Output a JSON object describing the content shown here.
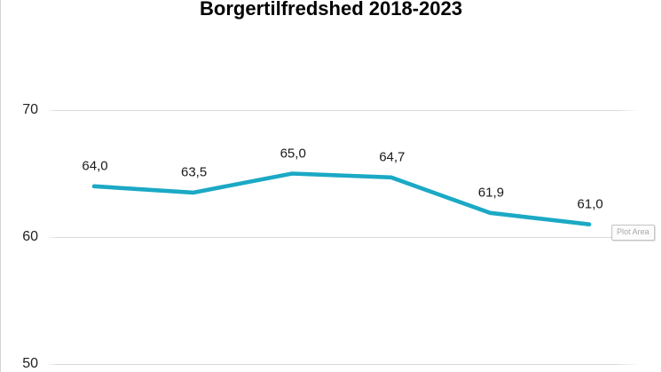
{
  "title": "Borgertilfredshed 2018-2023",
  "plot_area_tooltip": {
    "label": "Plot Area"
  },
  "colors": {
    "line": "#1BA9C5",
    "gridline": "#D9D9D9",
    "title_text": "#000000",
    "axis_label_text": "#222222",
    "data_label_text": "#1A1A1A",
    "border": "#D4D4D4",
    "tooltip_text": "#A8A8A8",
    "tooltip_border": "#C3C3C3"
  },
  "chart_data": {
    "type": "line",
    "title": "Borgertilfredshed 2018-2023",
    "series": [
      {
        "name": "Borgertilfredshed",
        "values": [
          64.0,
          63.5,
          65.0,
          64.7,
          61.9,
          61.0
        ]
      }
    ],
    "point_labels": [
      "64,0",
      "63,5",
      "65,0",
      "64,7",
      "61,9",
      "61,0"
    ],
    "x_tick_labels": [],
    "y_ticks": [
      70,
      60,
      50
    ],
    "ylim": [
      50,
      70
    ],
    "grid": "horizontal",
    "legend": "none",
    "xlabel": "",
    "ylabel": ""
  }
}
